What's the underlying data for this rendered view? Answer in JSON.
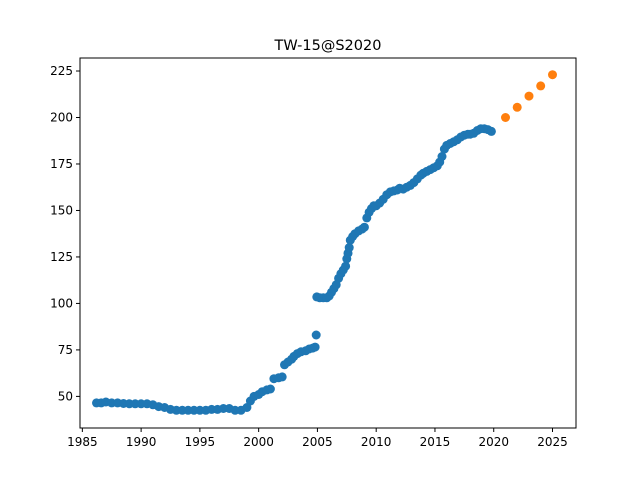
{
  "chart_data": {
    "type": "scatter",
    "title": "TW-15@S2020",
    "xlabel": "",
    "ylabel": "",
    "xlim": [
      1984.8,
      2027.0
    ],
    "ylim": [
      33.0,
      232.0
    ],
    "xticks": [
      1985,
      1990,
      1995,
      2000,
      2005,
      2010,
      2015,
      2020,
      2025
    ],
    "yticks": [
      50,
      75,
      100,
      125,
      150,
      175,
      200,
      225
    ],
    "grid": false,
    "series": [
      {
        "color": "#1f77b4",
        "points": [
          [
            1986.2,
            46.5
          ],
          [
            1986.6,
            46.5
          ],
          [
            1987.0,
            47.0
          ],
          [
            1987.5,
            46.5
          ],
          [
            1988.0,
            46.5
          ],
          [
            1988.5,
            46.2
          ],
          [
            1989.0,
            46.0
          ],
          [
            1989.5,
            46.0
          ],
          [
            1990.0,
            46.0
          ],
          [
            1990.5,
            46.0
          ],
          [
            1991.0,
            45.5
          ],
          [
            1991.5,
            44.5
          ],
          [
            1992.0,
            44.0
          ],
          [
            1992.5,
            43.0
          ],
          [
            1993.0,
            42.5
          ],
          [
            1993.5,
            42.5
          ],
          [
            1994.0,
            42.5
          ],
          [
            1994.5,
            42.5
          ],
          [
            1995.0,
            42.5
          ],
          [
            1995.5,
            42.5
          ],
          [
            1996.0,
            43.0
          ],
          [
            1996.5,
            43.0
          ],
          [
            1997.0,
            43.5
          ],
          [
            1997.5,
            43.5
          ],
          [
            1998.0,
            42.5
          ],
          [
            1998.5,
            42.5
          ],
          [
            1999.0,
            44.0
          ],
          [
            1999.3,
            47.5
          ],
          [
            1999.6,
            50.0
          ],
          [
            2000.0,
            51.0
          ],
          [
            2000.3,
            52.5
          ],
          [
            2000.7,
            53.5
          ],
          [
            2001.0,
            54.0
          ],
          [
            2001.3,
            59.5
          ],
          [
            2001.7,
            60.0
          ],
          [
            2002.0,
            60.5
          ],
          [
            2002.2,
            67.0
          ],
          [
            2002.5,
            68.5
          ],
          [
            2002.8,
            70.0
          ],
          [
            2003.0,
            71.5
          ],
          [
            2003.3,
            73.0
          ],
          [
            2003.6,
            74.0
          ],
          [
            2004.0,
            74.5
          ],
          [
            2004.3,
            75.5
          ],
          [
            2004.6,
            76.0
          ],
          [
            2004.8,
            76.5
          ],
          [
            2004.9,
            83.0
          ],
          [
            2004.95,
            103.5
          ],
          [
            2005.2,
            103.0
          ],
          [
            2005.5,
            103.0
          ],
          [
            2005.8,
            103.0
          ],
          [
            2006.0,
            104.0
          ],
          [
            2006.2,
            106.0
          ],
          [
            2006.4,
            108.0
          ],
          [
            2006.6,
            110.0
          ],
          [
            2006.8,
            113.5
          ],
          [
            2007.0,
            116.0
          ],
          [
            2007.2,
            118.0
          ],
          [
            2007.4,
            120.0
          ],
          [
            2007.5,
            124.0
          ],
          [
            2007.6,
            127.0
          ],
          [
            2007.7,
            130.0
          ],
          [
            2007.8,
            134.0
          ],
          [
            2008.0,
            136.0
          ],
          [
            2008.2,
            137.5
          ],
          [
            2008.5,
            139.0
          ],
          [
            2008.8,
            140.0
          ],
          [
            2009.0,
            141.0
          ],
          [
            2009.2,
            146.0
          ],
          [
            2009.4,
            149.0
          ],
          [
            2009.6,
            151.0
          ],
          [
            2009.8,
            152.5
          ],
          [
            2010.0,
            152.5
          ],
          [
            2010.3,
            154.0
          ],
          [
            2010.6,
            156.0
          ],
          [
            2010.9,
            158.5
          ],
          [
            2011.2,
            160.0
          ],
          [
            2011.5,
            160.5
          ],
          [
            2011.8,
            161.0
          ],
          [
            2012.0,
            162.0
          ],
          [
            2012.3,
            161.5
          ],
          [
            2012.6,
            162.5
          ],
          [
            2012.9,
            163.5
          ],
          [
            2013.2,
            165.0
          ],
          [
            2013.5,
            167.0
          ],
          [
            2013.8,
            169.0
          ],
          [
            2014.0,
            170.0
          ],
          [
            2014.3,
            171.0
          ],
          [
            2014.6,
            172.0
          ],
          [
            2014.9,
            173.0
          ],
          [
            2015.2,
            174.0
          ],
          [
            2015.4,
            176.0
          ],
          [
            2015.6,
            179.0
          ],
          [
            2015.8,
            183.0
          ],
          [
            2016.0,
            185.0
          ],
          [
            2016.3,
            186.0
          ],
          [
            2016.6,
            187.0
          ],
          [
            2016.9,
            188.0
          ],
          [
            2017.2,
            189.5
          ],
          [
            2017.5,
            190.5
          ],
          [
            2017.8,
            191.0
          ],
          [
            2018.0,
            191.0
          ],
          [
            2018.3,
            191.5
          ],
          [
            2018.6,
            193.0
          ],
          [
            2018.9,
            194.0
          ],
          [
            2019.2,
            194.0
          ],
          [
            2019.5,
            193.5
          ],
          [
            2019.8,
            192.5
          ]
        ]
      },
      {
        "color": "#ff7f0e",
        "points": [
          [
            2021.0,
            200.0
          ],
          [
            2022.0,
            205.5
          ],
          [
            2023.0,
            211.5
          ],
          [
            2024.0,
            217.0
          ],
          [
            2025.0,
            223.0
          ]
        ]
      }
    ]
  }
}
